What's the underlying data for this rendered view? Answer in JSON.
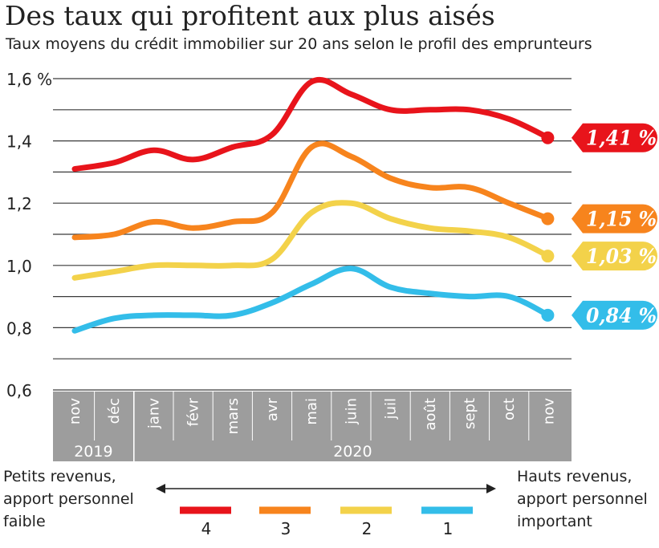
{
  "chart_data": {
    "type": "line",
    "title": "Des taux qui profitent aux plus aisés",
    "subtitle": "Taux moyens du crédit immobilier sur 20 ans selon le profil des emprunteurs",
    "categories": [
      "nov",
      "déc",
      "janv",
      "févr",
      "mars",
      "avr",
      "mai",
      "juin",
      "juil",
      "août",
      "sept",
      "oct",
      "nov"
    ],
    "year_groups": [
      {
        "label": "2019",
        "from": 0,
        "to": 1
      },
      {
        "label": "2020",
        "from": 2,
        "to": 12
      }
    ],
    "ylim": [
      0.6,
      1.6
    ],
    "yticks": [
      {
        "value": 0.6,
        "label": "0,6"
      },
      {
        "value": 0.8,
        "label": "0,8"
      },
      {
        "value": 1.0,
        "label": "1,0"
      },
      {
        "value": 1.2,
        "label": "1,2"
      },
      {
        "value": 1.4,
        "label": "1,4"
      },
      {
        "value": 1.6,
        "label": "1,6 %"
      }
    ],
    "grid": true,
    "series": [
      {
        "name": "4",
        "color": "#e8141b",
        "end_label": "1,41 %",
        "values": [
          1.31,
          1.33,
          1.37,
          1.34,
          1.38,
          1.42,
          1.59,
          1.55,
          1.5,
          1.5,
          1.5,
          1.47,
          1.41
        ]
      },
      {
        "name": "3",
        "color": "#f7841d",
        "end_label": "1,15 %",
        "values": [
          1.09,
          1.1,
          1.14,
          1.12,
          1.14,
          1.17,
          1.38,
          1.35,
          1.28,
          1.25,
          1.25,
          1.2,
          1.15
        ]
      },
      {
        "name": "2",
        "color": "#f3d24a",
        "end_label": "1,03 %",
        "values": [
          0.96,
          0.98,
          1.0,
          1.0,
          1.0,
          1.02,
          1.17,
          1.2,
          1.15,
          1.12,
          1.11,
          1.09,
          1.03
        ]
      },
      {
        "name": "1",
        "color": "#33bde9",
        "end_label": "0,84 %",
        "values": [
          0.79,
          0.83,
          0.84,
          0.84,
          0.84,
          0.88,
          0.94,
          0.99,
          0.93,
          0.91,
          0.9,
          0.9,
          0.84
        ]
      }
    ],
    "legend": {
      "placement": "bottom",
      "left_text": [
        "Petits revenus,",
        "apport personnel",
        "faible"
      ],
      "right_text": [
        "Hauts revenus,",
        "apport personnel",
        "important"
      ]
    }
  }
}
